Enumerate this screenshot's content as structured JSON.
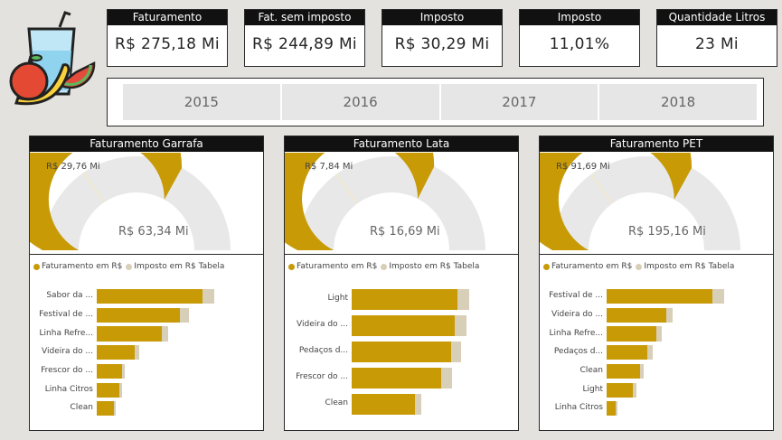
{
  "colors": {
    "accent": "#c79a06",
    "tax": "#d8cfb8",
    "track": "#e8e8e8",
    "header": "#111111",
    "background": "#e4e2de"
  },
  "logo": {
    "icon": "juice-fruit-logo-icon"
  },
  "kpis": [
    {
      "title": "Faturamento",
      "value": "R$ 275,18 Mi"
    },
    {
      "title": "Fat. sem imposto",
      "value": "R$ 244,89 Mi"
    },
    {
      "title": "Imposto",
      "value": "R$ 30,29 Mi"
    },
    {
      "title": "Imposto",
      "value": "11,01%"
    },
    {
      "title": "Quantidade Litros",
      "value": "23 Mi"
    }
  ],
  "years": [
    "2015",
    "2016",
    "2017",
    "2018"
  ],
  "cards": [
    {
      "title": "Faturamento Garrafa",
      "gauge": {
        "target_label": "R$ 29,76 Mi",
        "value_label": "R$ 63,34 Mi",
        "fill_fraction": 0.66,
        "target_fraction": 0.31
      },
      "legend": [
        "Faturamento em R$",
        "Imposto em R$ Tabela"
      ],
      "bars": [
        {
          "label": "Sabor da ...",
          "value": 0.8,
          "tax": 0.09
        },
        {
          "label": "Festival de ...",
          "value": 0.63,
          "tax": 0.07
        },
        {
          "label": "Linha Refre...",
          "value": 0.49,
          "tax": 0.05
        },
        {
          "label": "Videira do ...",
          "value": 0.29,
          "tax": 0.03
        },
        {
          "label": "Frescor do ...",
          "value": 0.19,
          "tax": 0.02
        },
        {
          "label": "Linha Citros",
          "value": 0.17,
          "tax": 0.02
        },
        {
          "label": "Clean",
          "value": 0.13,
          "tax": 0.015
        }
      ]
    },
    {
      "title": "Faturamento Lata",
      "gauge": {
        "target_label": "R$ 7,84 Mi",
        "value_label": "R$ 16,69 Mi",
        "fill_fraction": 0.65,
        "target_fraction": 0.3
      },
      "legend": [
        "Faturamento em R$",
        "Imposto em R$ Tabela"
      ],
      "bars": [
        {
          "label": "Light",
          "value": 0.8,
          "tax": 0.09
        },
        {
          "label": "Videira do ...",
          "value": 0.78,
          "tax": 0.09
        },
        {
          "label": "Pedaços d...",
          "value": 0.75,
          "tax": 0.08
        },
        {
          "label": "Frescor do ...",
          "value": 0.68,
          "tax": 0.08
        },
        {
          "label": "Clean",
          "value": 0.48,
          "tax": 0.05
        }
      ]
    },
    {
      "title": "Faturamento PET",
      "gauge": {
        "target_label": "R$ 91,69 Mi",
        "value_label": "R$ 195,16 Mi",
        "fill_fraction": 0.66,
        "target_fraction": 0.3
      },
      "legend": [
        "Faturamento em R$",
        "Imposto em R$ Tabela"
      ],
      "bars": [
        {
          "label": "Festival de ...",
          "value": 0.8,
          "tax": 0.09
        },
        {
          "label": "Videira do ...",
          "value": 0.45,
          "tax": 0.05
        },
        {
          "label": "Linha Refre...",
          "value": 0.38,
          "tax": 0.04
        },
        {
          "label": "Pedaços d...",
          "value": 0.31,
          "tax": 0.04
        },
        {
          "label": "Clean",
          "value": 0.25,
          "tax": 0.03
        },
        {
          "label": "Light",
          "value": 0.2,
          "tax": 0.025
        },
        {
          "label": "Linha Citros",
          "value": 0.07,
          "tax": 0.01
        }
      ]
    }
  ]
}
